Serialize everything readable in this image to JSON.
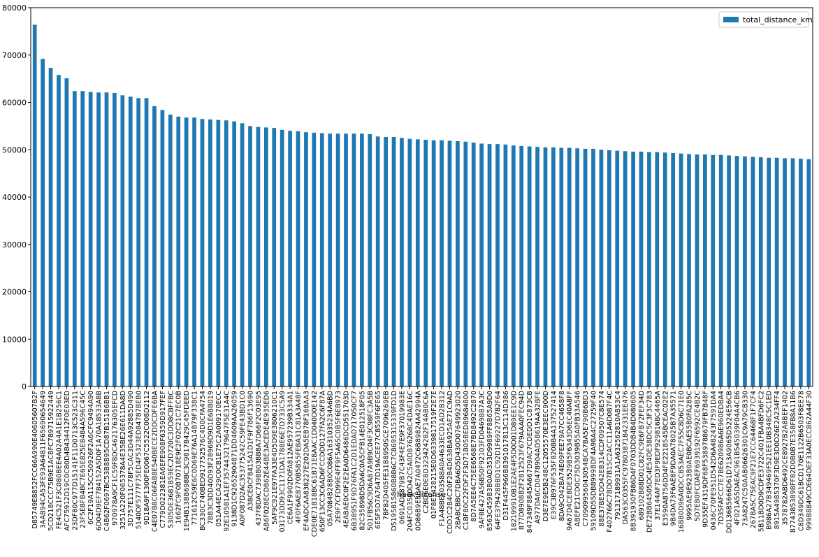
{
  "chart_data": {
    "type": "bar",
    "xlabel": "hack_license",
    "categories": [
      "D85749E8852FCC66A990E40605607B2F",
      "3AAB94CA53FE93A64811F65690654649",
      "5CD218CCC75B9E1ACBFC789715922449",
      "FE4C521F3C080BEE4A02A4A1E1B256C1",
      "AFC75912D19C0C80D4B434412F0E03ED",
      "23DF80C977D15141F11D0713C523C311",
      "23F5E8FB4BC7E65E825E8484A596C45C",
      "6C2F19A115CC50926F2A6CFC9494A90",
      "6D04D9EF784152A5D0F1A70A18533A8B",
      "C4B62F0697BC53B8B95CD87B151B6BB1",
      "970978A9CF1C59F8DC462176305EFCD",
      "3251A220F065378A4E35BE26E611DA8D",
      "3D757E111C78F5CAC3D44A92885D490",
      "5140DF5777F75ED4F5323ED84787BEB0",
      "9D18A9F1300FE0067C5522C008D2112",
      "C4E07B8C06FAB8E540BECE2DDCDFE6BA",
      "C779D022381EA6EFE908F6359D917FEF",
      "5305DE3681B59EC2D720C3DD8CBFFBC",
      "1662FC9F0B70718E9E2F02C21C7EC0B",
      "1E94B13BB698BC3C9817B429C45FDEED",
      "771612C59E6C0D69E76A14B79F338C1",
      "BC330C740BED917752576C4D0CFA4754",
      "7BB3C3DD40D93F28969D9D1E6BB019",
      "051A44ECA29C0CB1E75C2A009170ECC",
      "92E10581A1EF3574432179647F5E31A4C",
      "9138D1C92652904871DD4609AA26059",
      "A0F087D2AC353775242C59FE43BD1C0",
      "A38CE0CF8415A1D1F9F786F13690",
      "437F8DAC7398B038B8A7D66F2C03E95",
      "AB6F028ECD862E44BE3ACEDE4E935ED6",
      "5AF9C921E97FA33E4D5D9E3806210C1",
      "03173DD93C1171DA1788E6E7D733C5A9",
      "CE6A1F9902D0FA812AE957239B334A1",
      "4F0F6AE8770B5855FE8A31C81A3A48F",
      "EF4ADCAA838227E202DA5EB78F168AA3",
      "CDE0E71B18BC61B71E8AAC1D040D0E142",
      "650F13CC3C6AD6FCCDDD127FA2C6F87A",
      "05A7084B28B0C086A1631035234A6BD",
      "2E9F7CFD99E4FF9F5A65C0B5F6EB973",
      "4EABAE0C0F2E2EA0D6486DCD551703D",
      "6B38951F9D76FA1C2D1EDAD717050CF7",
      "82C35898D5DA6C0A5CFB14E012518F05",
      "501FB56C9D6A87A9B9C04F3C98FC3A5B",
      "6E5F5D7A7647D19ACEE77C8559F6FE65",
      "7BF82D405FE31B8950SCE7096269EB",
      "D5195815860B8B6C7C8695315339FD1D",
      "0691AD5879B7C43F4E7E9F37019983E",
      "204FC03540D42C5A0D876268C4DAE16C",
      "0D86B9E3BAE7A0472C6B89824A42994A",
      "C2BD6E0E8D323424282F14AB0C6A",
      "01F8E1428215E0D6339817519F2E7E",
      "F1A48BEF03588A0A4633ECD1AD2B312",
      "CDD1C2B4C20F2B4D638BA925AE71C9AD",
      "2BABCBBC7DBA6D5D430D07649923020",
      "C1BF80C22FDF2F3D71B05BED89684800",
      "8D7A5EE4C75EE6568E7BD8492C2870",
      "9AF8E427A56850F92103FD04698B7A3C",
      "8563C459B3B0AD353D9989FF8B65A9D0",
      "64FE379428BBD1C92D1F69227D782F64",
      "D31F445F966B8391017813C114D386",
      "182199910B1E2AE4F5D0D01D89EE1C9D",
      "877D8908B2F2812523F679AAA0FEC94D",
      "847349F8845A667D9AC7CDEDD1C873CB",
      "A977DA6CD0478904AD5B619AA32BFE",
      "D3E7E9E5B248C12055570E3EEC900D",
      "E39C3B976F535F8208B4A137527414",
      "8DA9C042BA74E09FEE79A7CC4658F8",
      "9A67D4CE8DE3529B5F6343D6EC40A8FF",
      "ABEFE21CD0C75D3039B55A0FB33A546",
      "C70909956043054BCA7BA5E790B6BD3",
      "59109D55DB8999BDF4A98A4C27259F40",
      "88E37BE5DD42EB314CDF09507C8E574",
      "F402766C7BDD7B15C2ACC11A6D087F4C",
      "791317189931A1A632562810AB53C4",
      "DA563C0355FC97803871842331EE476",
      "8B391930FB86D4F0703DDB4B4D080605",
      "689102B88D01C82FC9E6FB72FEF34D",
      "DE72BB64505DC4E54DE38DC5C3F3C783",
      "37E144AF7ED3F9EDF929816BC4465A",
      "E3590A8756DD4FE2218545BCEAC02E2",
      "9B4DA73F6AE8F9DA0A78025B7A35571",
      "16BB0D96A0DCC853AEC7F55C8D6C71E0",
      "9995AE9E923B0AE0BCAE55B0FA285C",
      "5D7EB0FCDAEF6939192F6592CE4B2C",
      "9D35EF4319DF68F5389788679FB7B48F",
      "0436C70FE951D542D6A48243F7591DA4",
      "7D35FAFCC7E7BE620986A6E960EDBA4",
      "DD136B5666D61D713A9065D5224E56CB",
      "4F021A55DAEAC961B545039F04A4CB6",
      "73A8247C50AAB06626301C9A79CB330",
      "267BA5C75EAC9F21E7CC64468F1F7CF4",
      "5B11BD0D9CDFE3722C401FBA4BFD6FC2",
      "B986A27B349469F521EE10B348C5C1ED",
      "8915A4985370F3D9E3D0D26E2A234FF4",
      "3578782ABD6492CE8927B2A8BEF1402",
      "87743853898FF82D0B0B7E358FB8A11B6",
      "C8D349DC61BCD170E1122B6503F8EE78",
      "999B8849CDE64DEF33A0ECC862A44F30"
    ],
    "series": [
      {
        "name": "total_distance_km",
        "color": "#1f77b4",
        "values": [
          76400,
          69200,
          67300,
          65800,
          65100,
          62400,
          62400,
          62200,
          62100,
          62100,
          62000,
          61500,
          61200,
          60900,
          60900,
          59200,
          58400,
          57400,
          57000,
          56800,
          56800,
          56500,
          56400,
          56300,
          56200,
          56000,
          55600,
          55000,
          54800,
          54700,
          54600,
          54200,
          54000,
          53900,
          53700,
          53600,
          53500,
          53400,
          53400,
          53400,
          53400,
          53400,
          53300,
          52800,
          52700,
          52700,
          52500,
          52300,
          52200,
          52100,
          52000,
          52000,
          51900,
          51800,
          51700,
          51500,
          51300,
          51200,
          51200,
          51100,
          50900,
          50800,
          50700,
          50600,
          50500,
          50500,
          50400,
          50400,
          50300,
          50200,
          50200,
          50000,
          49900,
          49800,
          49700,
          49600,
          49600,
          49500,
          49500,
          49400,
          49300,
          49200,
          49100,
          49000,
          49000,
          48900,
          48900,
          48800,
          48700,
          48600,
          48500,
          48400,
          48300,
          48300,
          48200,
          48200,
          48100,
          48000
        ]
      }
    ],
    "ylim": [
      0,
      80000
    ],
    "yticks": [
      0,
      10000,
      20000,
      30000,
      40000,
      50000,
      60000,
      70000,
      80000
    ],
    "grid": false,
    "legend": "upper right"
  }
}
